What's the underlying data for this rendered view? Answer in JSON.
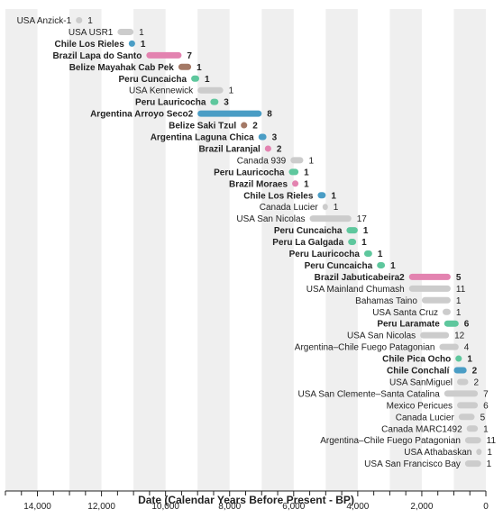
{
  "chart_data": {
    "type": "range",
    "xlabel": "Date (Calendar Years Before Present - BP)",
    "xlim": [
      15000,
      0
    ],
    "x_reversed": true,
    "x_ticks": [
      14000,
      12000,
      10000,
      8000,
      6000,
      4000,
      2000,
      0
    ],
    "x_tick_labels": [
      "14,000",
      "12,000",
      "10,000",
      "8,000",
      "6,000",
      "4,000",
      "2,000",
      "0"
    ],
    "background_bands": true,
    "colors": {
      "gray": "#cccccc",
      "blue": "#4a9dc5",
      "pink": "#e383b0",
      "brown": "#a47966",
      "green": "#5ec79d"
    },
    "series": [
      {
        "label": "USA Anzick-1",
        "start": 12800,
        "end": 12600,
        "count": "1",
        "color": "gray",
        "bold": false
      },
      {
        "label": "USA USR1",
        "start": 11500,
        "end": 11000,
        "count": "1",
        "color": "gray",
        "bold": false
      },
      {
        "label": "Chile Los Rieles",
        "start": 11150,
        "end": 10950,
        "count": "1",
        "color": "blue",
        "bold": true
      },
      {
        "label": "Brazil Lapa do Santo",
        "start": 10600,
        "end": 9500,
        "count": "7",
        "color": "pink",
        "bold": true
      },
      {
        "label": "Belize Mayahak Cab Pek",
        "start": 9600,
        "end": 9200,
        "count": "1",
        "color": "brown",
        "bold": true
      },
      {
        "label": "Peru Cuncaicha",
        "start": 9200,
        "end": 8950,
        "count": "1",
        "color": "green",
        "bold": true
      },
      {
        "label": "USA Kennewick",
        "start": 9000,
        "end": 8200,
        "count": "1",
        "color": "gray",
        "bold": false
      },
      {
        "label": "Peru Lauricocha",
        "start": 8600,
        "end": 8350,
        "count": "3",
        "color": "green",
        "bold": true
      },
      {
        "label": "Argentina Arroyo Seco2",
        "start": 9000,
        "end": 7000,
        "count": "8",
        "color": "blue",
        "bold": true
      },
      {
        "label": "Belize Saki Tzul",
        "start": 7650,
        "end": 7450,
        "count": "2",
        "color": "brown",
        "bold": true
      },
      {
        "label": "Argentina Laguna Chica",
        "start": 7100,
        "end": 6850,
        "count": "3",
        "color": "blue",
        "bold": true
      },
      {
        "label": "Brazil Laranjal",
        "start": 6900,
        "end": 6700,
        "count": "2",
        "color": "pink",
        "bold": true
      },
      {
        "label": "Canada 939",
        "start": 6100,
        "end": 5700,
        "count": "1",
        "color": "gray",
        "bold": false
      },
      {
        "label": "Peru Lauricocha",
        "start": 6150,
        "end": 5850,
        "count": "1",
        "color": "green",
        "bold": true
      },
      {
        "label": "Brazil Moraes",
        "start": 6050,
        "end": 5850,
        "count": "1",
        "color": "pink",
        "bold": true
      },
      {
        "label": "Chile Los Rieles",
        "start": 5250,
        "end": 5000,
        "count": "1",
        "color": "blue",
        "bold": true
      },
      {
        "label": "Canada Lucier",
        "start": 5100,
        "end": 4950,
        "count": "1",
        "color": "gray",
        "bold": false
      },
      {
        "label": "USA San Nicolas",
        "start": 5500,
        "end": 4200,
        "count": "17",
        "color": "gray",
        "bold": false
      },
      {
        "label": "Peru Cuncaicha",
        "start": 4350,
        "end": 4000,
        "count": "1",
        "color": "green",
        "bold": true
      },
      {
        "label": "Peru La Galgada",
        "start": 4300,
        "end": 4050,
        "count": "1",
        "color": "green",
        "bold": true
      },
      {
        "label": "Peru Lauricocha",
        "start": 3800,
        "end": 3550,
        "count": "1",
        "color": "green",
        "bold": true
      },
      {
        "label": "Peru Cuncaicha",
        "start": 3400,
        "end": 3150,
        "count": "1",
        "color": "green",
        "bold": true
      },
      {
        "label": "Brazil Jabuticabeira2",
        "start": 2400,
        "end": 1100,
        "count": "5",
        "color": "pink",
        "bold": true
      },
      {
        "label": "USA Mainland Chumash",
        "start": 2400,
        "end": 1100,
        "count": "11",
        "color": "gray",
        "bold": false
      },
      {
        "label": "Bahamas Taino",
        "start": 2000,
        "end": 1100,
        "count": "1",
        "color": "gray",
        "bold": false
      },
      {
        "label": "USA Santa Cruz",
        "start": 1350,
        "end": 1100,
        "count": "1",
        "color": "gray",
        "bold": false
      },
      {
        "label": "Peru Laramate",
        "start": 1300,
        "end": 850,
        "count": "6",
        "color": "green",
        "bold": true
      },
      {
        "label": "USA San Nicolas",
        "start": 2050,
        "end": 1150,
        "count": "12",
        "color": "gray",
        "bold": false
      },
      {
        "label": "Argentina–Chile Fuego Patagonian",
        "start": 1450,
        "end": 850,
        "count": "4",
        "color": "gray",
        "bold": false
      },
      {
        "label": "Chile Pica Ocho",
        "start": 950,
        "end": 750,
        "count": "1",
        "color": "green",
        "bold": true
      },
      {
        "label": "Chile Conchalí",
        "start": 1000,
        "end": 600,
        "count": "2",
        "color": "blue",
        "bold": true
      },
      {
        "label": "USA SanMiguel",
        "start": 900,
        "end": 550,
        "count": "2",
        "color": "gray",
        "bold": false
      },
      {
        "label": "USA San Clemente–Santa Catalina",
        "start": 1300,
        "end": 250,
        "count": "7",
        "color": "gray",
        "bold": false
      },
      {
        "label": "Mexico Pericues",
        "start": 900,
        "end": 250,
        "count": "6",
        "color": "gray",
        "bold": false
      },
      {
        "label": "Canada Lucier",
        "start": 850,
        "end": 350,
        "count": "5",
        "color": "gray",
        "bold": false
      },
      {
        "label": "Canada MARC1492",
        "start": 600,
        "end": 250,
        "count": "1",
        "color": "gray",
        "bold": false
      },
      {
        "label": "Argentina–Chile Fuego Patagonian",
        "start": 650,
        "end": 150,
        "count": "11",
        "color": "gray",
        "bold": false
      },
      {
        "label": "USA Athabaskan",
        "start": 300,
        "end": 150,
        "count": "1",
        "color": "gray",
        "bold": false
      },
      {
        "label": "USA San Francisco Bay",
        "start": 650,
        "end": 150,
        "count": "1",
        "color": "gray",
        "bold": false
      }
    ]
  }
}
